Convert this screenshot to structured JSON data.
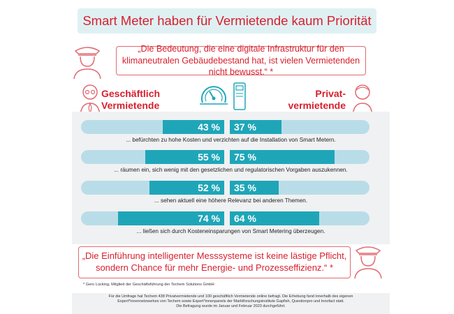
{
  "title": "Smart Meter haben für Vermietende kaum Priorität",
  "quote_top": "„Die Bedeutung, die eine digitale Infrastruktur für den klimaneutralen Gebäudebestand hat, ist vielen Vermietenden nicht bewusst.“ *",
  "quote_bottom": "„Die Einführung intelligenter Messsysteme ist keine lästige Pflicht, sondern Chance für mehr Energie- und Prozesseffizienz.“ *",
  "groups": {
    "left_line1": "Geschäftlich",
    "left_line2": "Vermietende",
    "right_line1": "Privat-",
    "right_line2": "vermietende"
  },
  "colors": {
    "accent_red": "#d7202e",
    "bar_fill": "#1ea6b8",
    "bar_track": "#b9dde8",
    "panel_bg": "#f0f1f2",
    "title_bg": "#dff0f3"
  },
  "icons": [
    "businessperson-icon",
    "landlord-icon",
    "private-person-icon",
    "smart-meter-gauge-icon",
    "meter-device-icon"
  ],
  "chart_data": {
    "type": "bar",
    "orientation": "horizontal-diverging",
    "unit": "%",
    "series": [
      {
        "name": "Geschäftlich Vermietende",
        "values": [
          43,
          55,
          52,
          74
        ]
      },
      {
        "name": "Privatvermietende",
        "values": [
          37,
          75,
          35,
          64
        ]
      }
    ],
    "labels": {
      "left": [
        "43 %",
        "55 %",
        "52 %",
        "74 %"
      ],
      "right": [
        "37 %",
        "75 %",
        "35 %",
        "64 %"
      ]
    },
    "categories": [
      "... befürchten zu hohe Kosten und verzichten auf die Installation von Smart Metern.",
      "... räumen ein, sich wenig mit den gesetzlichen und regulatorischen Vorgaben auszukennen.",
      "... sehen aktuell eine höhere Relevanz bei anderen Themen.",
      "... ließen sich durch Kosteneinsparungen von Smart Metering überzeugen."
    ],
    "xlim": [
      0,
      100
    ]
  },
  "footnote": "* Gero Lücking, Mitglied der Geschäftsführung der Techem Solutions GmbH",
  "source_lines": [
    "Für die Umfrage hat Techem 438 Privatvermietende und 100 geschäftlich Vermietende online befragt. Die Erhebung fand innerhalb des eigenen",
    "Expert*innennetzwerkes von Techem sowie Expert*innenpanels der Marktforschungsinstitute Gapfish, Questionpro und Innofact statt.",
    "Die Befragung wurde im Januar und Februar 2023 durchgeführt."
  ]
}
